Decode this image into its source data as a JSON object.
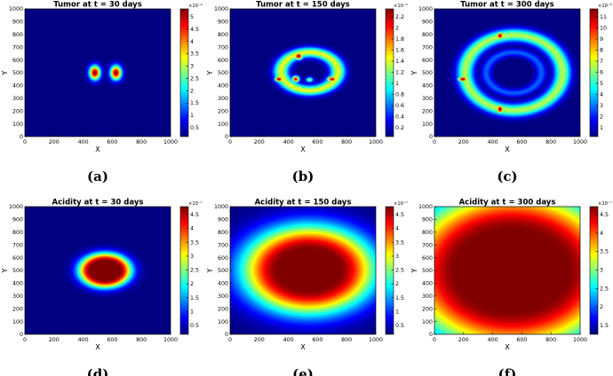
{
  "chart_data": [
    {
      "type": "heatmap",
      "title": "Tumor at t = 30 days",
      "xlabel": "X",
      "ylabel": "Y",
      "xlim": [
        0,
        1000
      ],
      "ylim": [
        0,
        1000
      ],
      "xticks": [
        "0",
        "200",
        "400",
        "600",
        "800",
        "1000"
      ],
      "yticks": [
        "0",
        "100",
        "200",
        "300",
        "400",
        "500",
        "600",
        "700",
        "800",
        "900",
        "1000"
      ],
      "colorbar": {
        "ticks": [
          "0.5",
          "1",
          "1.5",
          "2",
          "2.5",
          "3",
          "3.5",
          "4",
          "4.5",
          "5"
        ],
        "exponent": "×10⁻⁴"
      },
      "panel_label": "(a)",
      "field": {
        "blobs": [
          {
            "x": 480,
            "y": 500,
            "rx": 38,
            "ry": 55,
            "v": 1.0
          },
          {
            "x": 625,
            "y": 500,
            "rx": 38,
            "ry": 55,
            "v": 1.0
          }
        ],
        "rings": [],
        "plateaus": []
      }
    },
    {
      "type": "heatmap",
      "title": "Tumor at t = 150 days",
      "xlabel": "X",
      "ylabel": "Y",
      "xlim": [
        0,
        1000
      ],
      "ylim": [
        0,
        1000
      ],
      "xticks": [
        "0",
        "200",
        "400",
        "600",
        "800",
        "1000"
      ],
      "yticks": [
        "0",
        "100",
        "200",
        "300",
        "400",
        "500",
        "600",
        "700",
        "800",
        "900",
        "1000"
      ],
      "colorbar": {
        "ticks": [
          "0.2",
          "0.4",
          "0.6",
          "0.8",
          "1",
          "1.2",
          "1.4",
          "1.6",
          "1.8",
          "2",
          "2.2"
        ],
        "exponent": "×10⁻⁴"
      },
      "panel_label": "(b)",
      "field": {
        "blobs": [
          {
            "x": 335,
            "y": 450,
            "rx": 28,
            "ry": 22,
            "v": 1.0
          },
          {
            "x": 450,
            "y": 450,
            "rx": 25,
            "ry": 25,
            "v": 0.95
          },
          {
            "x": 470,
            "y": 630,
            "rx": 30,
            "ry": 28,
            "v": 1.0
          },
          {
            "x": 700,
            "y": 450,
            "rx": 35,
            "ry": 22,
            "v": 0.95
          },
          {
            "x": 545,
            "y": 445,
            "rx": 25,
            "ry": 20,
            "v": 0.55
          }
        ],
        "rings": [
          {
            "x": 545,
            "y": 510,
            "rx": 195,
            "ry": 150,
            "w": 40,
            "v": 0.6
          }
        ],
        "plateaus": []
      }
    },
    {
      "type": "heatmap",
      "title": "Tumor at t = 300 days",
      "xlabel": "X",
      "ylabel": "Y",
      "xlim": [
        0,
        1000
      ],
      "ylim": [
        0,
        1000
      ],
      "xticks": [
        "0",
        "200",
        "400",
        "600",
        "800",
        "1000"
      ],
      "yticks": [
        "0",
        "100",
        "200",
        "300",
        "400",
        "500",
        "600",
        "700",
        "800",
        "900",
        "1000"
      ],
      "colorbar": {
        "ticks": [
          "1",
          "2",
          "3",
          "4",
          "5",
          "6",
          "7",
          "8",
          "9",
          "10",
          "11"
        ],
        "exponent": "×10⁻⁵"
      },
      "panel_label": "(c)",
      "field": {
        "blobs": [
          {
            "x": 450,
            "y": 790,
            "rx": 25,
            "ry": 30,
            "v": 1.0
          },
          {
            "x": 450,
            "y": 215,
            "rx": 25,
            "ry": 35,
            "v": 1.0
          },
          {
            "x": 195,
            "y": 450,
            "rx": 35,
            "ry": 20,
            "v": 1.0
          },
          {
            "x": 880,
            "y": 450,
            "rx": 25,
            "ry": 15,
            "v": 0.55
          }
        ],
        "rings": [
          {
            "x": 545,
            "y": 500,
            "rx": 335,
            "ry": 295,
            "w": 50,
            "v": 0.55
          },
          {
            "x": 545,
            "y": 500,
            "rx": 190,
            "ry": 160,
            "w": 30,
            "v": 0.22
          }
        ],
        "plateaus": []
      }
    },
    {
      "type": "heatmap",
      "title": "Acidity at t = 30 days",
      "xlabel": "X",
      "ylabel": "Y",
      "xlim": [
        0,
        1000
      ],
      "ylim": [
        0,
        1000
      ],
      "xticks": [
        "0",
        "200",
        "400",
        "600",
        "800",
        "1000"
      ],
      "yticks": [
        "0",
        "100",
        "200",
        "300",
        "400",
        "500",
        "600",
        "700",
        "800",
        "900",
        "1000"
      ],
      "colorbar": {
        "ticks": [
          "0.5",
          "1",
          "1.5",
          "2",
          "2.5",
          "3",
          "3.5",
          "4",
          "4.5"
        ],
        "exponent": "×10⁻⁷"
      },
      "panel_label": "(d)",
      "field": {
        "blobs": [],
        "rings": [],
        "plateaus": [
          {
            "x": 550,
            "y": 500,
            "rx": 100,
            "ry": 75,
            "w": 65,
            "v": 1.0
          }
        ]
      }
    },
    {
      "type": "heatmap",
      "title": "Acidity at t = 150 days",
      "xlabel": "X",
      "ylabel": "Y",
      "xlim": [
        0,
        1000
      ],
      "ylim": [
        0,
        1000
      ],
      "xticks": [
        "0",
        "200",
        "400",
        "600",
        "800",
        "1000"
      ],
      "yticks": [
        "0",
        "100",
        "200",
        "300",
        "400",
        "500",
        "600",
        "700",
        "800",
        "900",
        "1000"
      ],
      "colorbar": {
        "ticks": [
          "0.5",
          "1",
          "1.5",
          "2",
          "2.5",
          "3",
          "3.5",
          "4",
          "4.5"
        ],
        "exponent": "×10⁻⁷"
      },
      "panel_label": "(e)",
      "field": {
        "blobs": [],
        "rings": [],
        "plateaus": [
          {
            "x": 540,
            "y": 505,
            "rx": 205,
            "ry": 155,
            "w": 200,
            "v": 1.0
          }
        ]
      }
    },
    {
      "type": "heatmap",
      "title": "Acidity at t = 300 days",
      "xlabel": "X",
      "ylabel": "Y",
      "xlim": [
        0,
        1000
      ],
      "ylim": [
        0,
        1000
      ],
      "xticks": [
        "0",
        "200",
        "400",
        "600",
        "800",
        "1000"
      ],
      "yticks": [
        "0",
        "100",
        "200",
        "300",
        "400",
        "500",
        "600",
        "700",
        "800",
        "900",
        "1000"
      ],
      "colorbar": {
        "ticks": [
          "1.5",
          "2",
          "2.5",
          "3",
          "3.5",
          "4",
          "4.5"
        ],
        "exponent": "×10⁻⁷"
      },
      "panel_label": "(f)",
      "field": {
        "blobs": [],
        "rings": [],
        "plateaus": [
          {
            "x": 530,
            "y": 500,
            "rx": 370,
            "ry": 310,
            "w": 340,
            "v": 1.0
          }
        ]
      }
    }
  ]
}
